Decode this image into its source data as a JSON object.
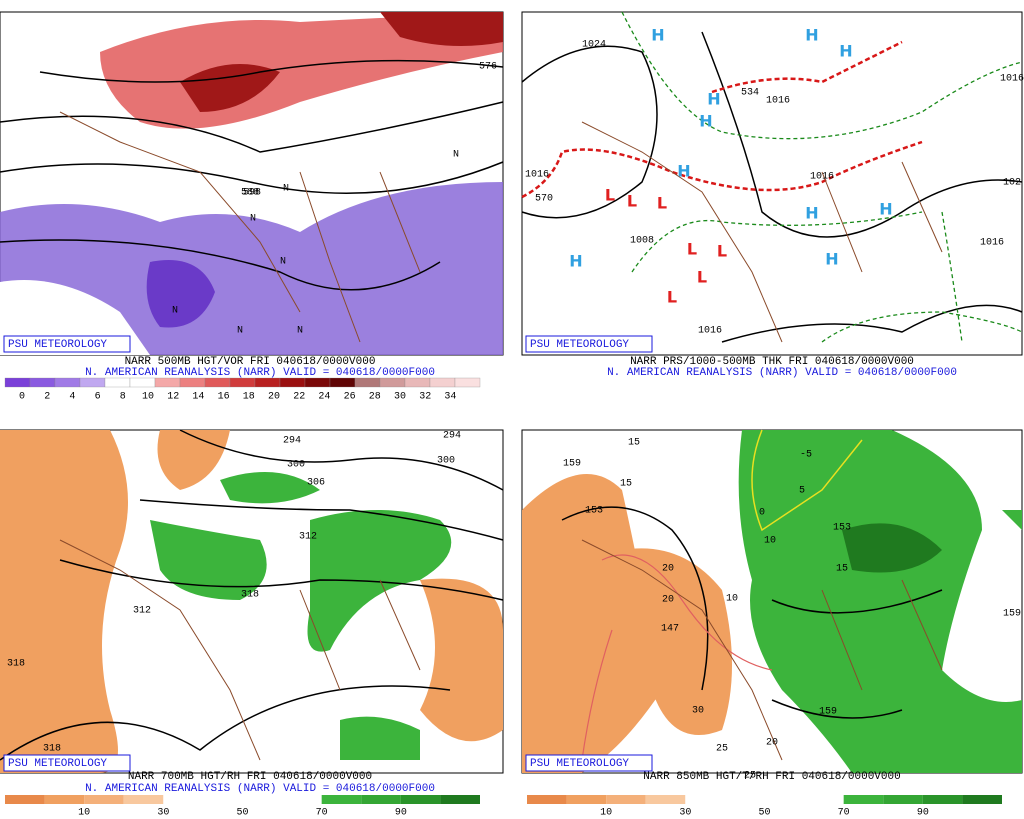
{
  "panels": [
    {
      "badge": "PSU METEOROLOGY",
      "title": "NARR 500MB HGT/VOR FRI 040618/0000V000",
      "subtitle": "N. AMERICAN REANALYSIS (NARR) VALID = 040618/0000F000",
      "colorbar_labels": [
        0,
        2,
        4,
        6,
        8,
        10,
        12,
        14,
        16,
        18,
        20,
        22,
        24,
        26,
        28,
        30,
        32,
        34
      ],
      "contour_labels": [
        "576",
        "588",
        "598",
        "N",
        "N",
        "N",
        "N",
        "N",
        "N",
        "N"
      ]
    },
    {
      "badge": "PSU METEOROLOGY",
      "title": "NARR PRS/1000-500MB THK FRI 040618/0000V000",
      "subtitle": "N. AMERICAN REANALYSIS (NARR) VALID = 040618/0000F000",
      "contour_labels": [
        "1024",
        "1016",
        "1016",
        "1016",
        "1016",
        "1016",
        "1016",
        "102",
        "570",
        "534",
        "1008",
        "H",
        "H",
        "H",
        "H",
        "H",
        "H",
        "H",
        "H",
        "H",
        "H",
        "L",
        "L",
        "L",
        "L",
        "L",
        "L",
        "L"
      ]
    },
    {
      "badge": "PSU METEOROLOGY",
      "title": "NARR 700MB HGT/RH FRI 040618/0000V000",
      "subtitle": "N. AMERICAN REANALYSIS (NARR) VALID = 040618/0000F000",
      "colorbar_labels": [
        10,
        30,
        50,
        70,
        90
      ],
      "contour_labels": [
        "294",
        "300",
        "306",
        "300",
        "312",
        "318",
        "312",
        "318",
        "318",
        "294"
      ]
    },
    {
      "badge": "PSU METEOROLOGY",
      "title": "NARR 850MB HGT/T/RH FRI 040618/0000V000",
      "colorbar_labels": [
        10,
        30,
        50,
        70,
        90
      ],
      "contour_labels": [
        "159",
        "15",
        "15",
        "153",
        "147",
        "-5",
        "5",
        "0",
        "10",
        "10",
        "20",
        "20",
        "30",
        "25",
        "25",
        "153",
        "15",
        "159",
        "159",
        "20"
      ]
    }
  ]
}
